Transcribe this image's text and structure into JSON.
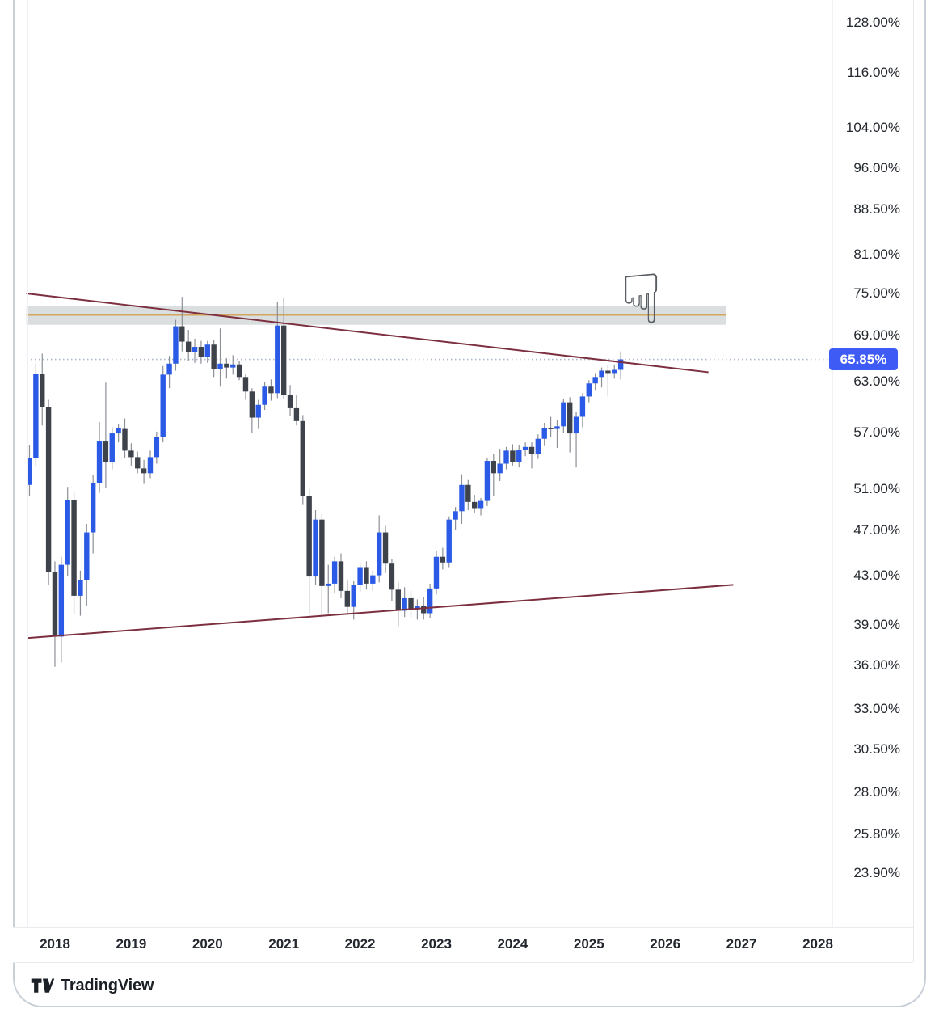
{
  "page": {
    "attribution_text": "TradingView"
  },
  "price_scale": {
    "current_label": "65.85%",
    "current_value": 65.85,
    "ticks": [
      {
        "label": "128.00%",
        "value": 128.0
      },
      {
        "label": "116.00%",
        "value": 116.0
      },
      {
        "label": "104.00%",
        "value": 104.0
      },
      {
        "label": "96.00%",
        "value": 96.0
      },
      {
        "label": "88.50%",
        "value": 88.5
      },
      {
        "label": "81.00%",
        "value": 81.0
      },
      {
        "label": "75.00%",
        "value": 75.0
      },
      {
        "label": "69.00%",
        "value": 69.0
      },
      {
        "label": "63.00%",
        "value": 63.0
      },
      {
        "label": "57.00%",
        "value": 57.0
      },
      {
        "label": "51.00%",
        "value": 51.0
      },
      {
        "label": "47.00%",
        "value": 47.0
      },
      {
        "label": "43.00%",
        "value": 43.0
      },
      {
        "label": "39.00%",
        "value": 39.0
      },
      {
        "label": "36.00%",
        "value": 36.0
      },
      {
        "label": "33.00%",
        "value": 33.0
      },
      {
        "label": "30.50%",
        "value": 30.5
      },
      {
        "label": "28.00%",
        "value": 28.0
      },
      {
        "label": "25.80%",
        "value": 25.8
      },
      {
        "label": "23.90%",
        "value": 23.9
      }
    ]
  },
  "time_scale": {
    "years": [
      "2018",
      "2019",
      "2020",
      "2021",
      "2022",
      "2023",
      "2024",
      "2025",
      "2026",
      "2027",
      "2028"
    ]
  },
  "chart_data": {
    "type": "candlestick",
    "title": "",
    "unit": "%",
    "interval": "monthly",
    "scale": "logarithmic",
    "grid": false,
    "legend": false,
    "ylim": [
      23.9,
      128.0
    ],
    "x_ticks": [
      "2018",
      "2019",
      "2020",
      "2021",
      "2022",
      "2023",
      "2024",
      "2025",
      "2026",
      "2027",
      "2028"
    ],
    "y_ticks": [
      128.0,
      116.0,
      104.0,
      96.0,
      88.5,
      81.0,
      75.0,
      69.0,
      63.0,
      57.0,
      51.0,
      47.0,
      43.0,
      39.0,
      36.0,
      33.0,
      30.5,
      28.0,
      25.8,
      23.9
    ],
    "last_price": 65.85,
    "colors": {
      "up": "#2b5be6",
      "down": "#3e424a",
      "wick": "#8c8f96",
      "zone_fill": "rgba(124,136,140,0.28)",
      "zone_line": "#d2a65f",
      "trendline": "#7c2f3f",
      "price_line": "#a9b7cb",
      "label_bg": "#3f5bf5"
    },
    "candles": [
      {
        "t": "2017-09",
        "o": 51.4,
        "h": 55.6,
        "l": 50.3,
        "c": 54.2
      },
      {
        "t": "2017-10",
        "o": 54.2,
        "h": 65.3,
        "l": 53.4,
        "c": 64.0
      },
      {
        "t": "2017-11",
        "o": 64.0,
        "h": 66.6,
        "l": 57.8,
        "c": 59.9
      },
      {
        "t": "2017-12",
        "o": 59.9,
        "h": 60.8,
        "l": 42.2,
        "c": 43.3
      },
      {
        "t": "2018-01",
        "o": 43.3,
        "h": 44.2,
        "l": 35.9,
        "c": 38.1
      },
      {
        "t": "2018-02",
        "o": 38.1,
        "h": 44.6,
        "l": 36.2,
        "c": 43.9
      },
      {
        "t": "2018-03",
        "o": 43.9,
        "h": 51.2,
        "l": 42.9,
        "c": 49.9
      },
      {
        "t": "2018-04",
        "o": 49.9,
        "h": 50.6,
        "l": 39.8,
        "c": 41.3
      },
      {
        "t": "2018-05",
        "o": 41.3,
        "h": 43.4,
        "l": 39.7,
        "c": 42.6
      },
      {
        "t": "2018-06",
        "o": 42.6,
        "h": 47.6,
        "l": 40.5,
        "c": 46.8
      },
      {
        "t": "2018-07",
        "o": 46.8,
        "h": 52.4,
        "l": 44.9,
        "c": 51.6
      },
      {
        "t": "2018-08",
        "o": 51.6,
        "h": 58.2,
        "l": 50.6,
        "c": 56.0
      },
      {
        "t": "2018-09",
        "o": 56.0,
        "h": 62.9,
        "l": 51.1,
        "c": 53.8
      },
      {
        "t": "2018-10",
        "o": 53.8,
        "h": 57.6,
        "l": 53.0,
        "c": 56.9
      },
      {
        "t": "2018-11",
        "o": 56.9,
        "h": 58.0,
        "l": 55.9,
        "c": 57.5
      },
      {
        "t": "2018-12",
        "o": 57.4,
        "h": 58.6,
        "l": 54.2,
        "c": 55.0
      },
      {
        "t": "2019-01",
        "o": 55.0,
        "h": 55.8,
        "l": 53.4,
        "c": 54.3
      },
      {
        "t": "2019-02",
        "o": 54.3,
        "h": 54.9,
        "l": 52.6,
        "c": 53.1
      },
      {
        "t": "2019-03",
        "o": 53.1,
        "h": 54.0,
        "l": 51.5,
        "c": 52.6
      },
      {
        "t": "2019-04",
        "o": 52.6,
        "h": 55.0,
        "l": 52.1,
        "c": 54.3
      },
      {
        "t": "2019-05",
        "o": 54.3,
        "h": 57.1,
        "l": 53.6,
        "c": 56.5
      },
      {
        "t": "2019-06",
        "o": 56.5,
        "h": 65.0,
        "l": 55.9,
        "c": 63.9
      },
      {
        "t": "2019-07",
        "o": 63.9,
        "h": 66.3,
        "l": 62.2,
        "c": 65.3
      },
      {
        "t": "2019-08",
        "o": 65.3,
        "h": 71.2,
        "l": 64.4,
        "c": 70.3
      },
      {
        "t": "2019-09",
        "o": 70.3,
        "h": 74.5,
        "l": 66.9,
        "c": 68.2
      },
      {
        "t": "2019-10",
        "o": 68.2,
        "h": 69.8,
        "l": 65.6,
        "c": 66.8
      },
      {
        "t": "2019-11",
        "o": 66.8,
        "h": 68.6,
        "l": 65.4,
        "c": 67.5
      },
      {
        "t": "2019-12",
        "o": 67.5,
        "h": 68.3,
        "l": 65.3,
        "c": 66.2
      },
      {
        "t": "2020-01",
        "o": 66.2,
        "h": 68.3,
        "l": 65.4,
        "c": 67.8
      },
      {
        "t": "2020-02",
        "o": 67.8,
        "h": 68.4,
        "l": 63.6,
        "c": 64.6
      },
      {
        "t": "2020-03",
        "o": 64.6,
        "h": 70.0,
        "l": 62.4,
        "c": 65.3
      },
      {
        "t": "2020-04",
        "o": 65.3,
        "h": 66.0,
        "l": 63.4,
        "c": 64.8
      },
      {
        "t": "2020-05",
        "o": 64.8,
        "h": 66.4,
        "l": 63.9,
        "c": 65.2
      },
      {
        "t": "2020-06",
        "o": 65.2,
        "h": 65.7,
        "l": 63.2,
        "c": 63.6
      },
      {
        "t": "2020-07",
        "o": 63.6,
        "h": 64.0,
        "l": 60.8,
        "c": 61.8
      },
      {
        "t": "2020-08",
        "o": 61.8,
        "h": 62.2,
        "l": 56.9,
        "c": 58.7
      },
      {
        "t": "2020-09",
        "o": 58.7,
        "h": 60.8,
        "l": 57.4,
        "c": 60.2
      },
      {
        "t": "2020-10",
        "o": 60.2,
        "h": 63.0,
        "l": 59.6,
        "c": 62.4
      },
      {
        "t": "2020-11",
        "o": 62.4,
        "h": 63.3,
        "l": 60.7,
        "c": 61.6
      },
      {
        "t": "2020-12",
        "o": 61.6,
        "h": 73.7,
        "l": 61.0,
        "c": 70.4
      },
      {
        "t": "2021-01",
        "o": 70.4,
        "h": 74.3,
        "l": 60.9,
        "c": 61.4
      },
      {
        "t": "2021-02",
        "o": 61.4,
        "h": 62.6,
        "l": 58.9,
        "c": 59.8
      },
      {
        "t": "2021-03",
        "o": 59.8,
        "h": 61.4,
        "l": 57.8,
        "c": 58.3
      },
      {
        "t": "2021-04",
        "o": 58.3,
        "h": 59.0,
        "l": 49.4,
        "c": 50.3
      },
      {
        "t": "2021-05",
        "o": 50.3,
        "h": 51.0,
        "l": 39.9,
        "c": 42.9
      },
      {
        "t": "2021-06",
        "o": 42.9,
        "h": 48.9,
        "l": 42.2,
        "c": 48.0
      },
      {
        "t": "2021-07",
        "o": 48.0,
        "h": 48.5,
        "l": 39.5,
        "c": 42.1
      },
      {
        "t": "2021-08",
        "o": 42.1,
        "h": 43.9,
        "l": 39.9,
        "c": 42.3
      },
      {
        "t": "2021-09",
        "o": 42.3,
        "h": 44.6,
        "l": 41.5,
        "c": 44.2
      },
      {
        "t": "2021-10",
        "o": 44.2,
        "h": 44.9,
        "l": 41.1,
        "c": 41.7
      },
      {
        "t": "2021-11",
        "o": 41.7,
        "h": 42.6,
        "l": 39.8,
        "c": 40.4
      },
      {
        "t": "2021-12",
        "o": 40.4,
        "h": 42.5,
        "l": 39.4,
        "c": 42.2
      },
      {
        "t": "2022-01",
        "o": 42.2,
        "h": 44.0,
        "l": 41.6,
        "c": 43.7
      },
      {
        "t": "2022-02",
        "o": 43.7,
        "h": 44.2,
        "l": 41.8,
        "c": 42.3
      },
      {
        "t": "2022-03",
        "o": 42.3,
        "h": 43.4,
        "l": 41.7,
        "c": 43.0
      },
      {
        "t": "2022-04",
        "o": 43.0,
        "h": 48.4,
        "l": 42.4,
        "c": 46.8
      },
      {
        "t": "2022-05",
        "o": 46.8,
        "h": 47.4,
        "l": 43.2,
        "c": 44.0
      },
      {
        "t": "2022-06",
        "o": 44.0,
        "h": 44.4,
        "l": 40.9,
        "c": 41.8
      },
      {
        "t": "2022-07",
        "o": 41.8,
        "h": 42.4,
        "l": 38.9,
        "c": 40.1
      },
      {
        "t": "2022-08",
        "o": 40.1,
        "h": 42.0,
        "l": 39.6,
        "c": 41.1
      },
      {
        "t": "2022-09",
        "o": 41.1,
        "h": 41.7,
        "l": 39.6,
        "c": 40.2
      },
      {
        "t": "2022-10",
        "o": 40.2,
        "h": 41.0,
        "l": 39.4,
        "c": 40.5
      },
      {
        "t": "2022-11",
        "o": 40.5,
        "h": 41.2,
        "l": 39.4,
        "c": 39.9
      },
      {
        "t": "2022-12",
        "o": 39.9,
        "h": 42.3,
        "l": 39.5,
        "c": 41.9
      },
      {
        "t": "2023-01",
        "o": 41.9,
        "h": 45.1,
        "l": 41.4,
        "c": 44.6
      },
      {
        "t": "2023-02",
        "o": 44.6,
        "h": 45.4,
        "l": 43.5,
        "c": 44.1
      },
      {
        "t": "2023-03",
        "o": 44.1,
        "h": 48.3,
        "l": 43.7,
        "c": 48.0
      },
      {
        "t": "2023-04",
        "o": 48.0,
        "h": 49.2,
        "l": 47.0,
        "c": 48.8
      },
      {
        "t": "2023-05",
        "o": 48.8,
        "h": 52.5,
        "l": 47.6,
        "c": 51.4
      },
      {
        "t": "2023-06",
        "o": 51.4,
        "h": 51.9,
        "l": 48.9,
        "c": 49.7
      },
      {
        "t": "2023-07",
        "o": 49.7,
        "h": 50.4,
        "l": 48.6,
        "c": 49.1
      },
      {
        "t": "2023-08",
        "o": 49.1,
        "h": 50.1,
        "l": 48.4,
        "c": 49.8
      },
      {
        "t": "2023-09",
        "o": 49.8,
        "h": 54.2,
        "l": 49.3,
        "c": 53.9
      },
      {
        "t": "2023-10",
        "o": 53.9,
        "h": 54.6,
        "l": 50.3,
        "c": 52.6
      },
      {
        "t": "2023-11",
        "o": 52.6,
        "h": 55.2,
        "l": 51.8,
        "c": 53.6
      },
      {
        "t": "2023-12",
        "o": 53.6,
        "h": 55.4,
        "l": 53.0,
        "c": 55.0
      },
      {
        "t": "2024-01",
        "o": 55.0,
        "h": 55.7,
        "l": 53.4,
        "c": 53.8
      },
      {
        "t": "2024-02",
        "o": 53.8,
        "h": 55.6,
        "l": 53.2,
        "c": 55.1
      },
      {
        "t": "2024-03",
        "o": 55.1,
        "h": 55.9,
        "l": 54.4,
        "c": 55.4
      },
      {
        "t": "2024-04",
        "o": 55.4,
        "h": 55.9,
        "l": 53.1,
        "c": 54.6
      },
      {
        "t": "2024-05",
        "o": 54.6,
        "h": 56.8,
        "l": 54.1,
        "c": 56.3
      },
      {
        "t": "2024-06",
        "o": 56.3,
        "h": 58.1,
        "l": 55.5,
        "c": 57.5
      },
      {
        "t": "2024-07",
        "o": 57.5,
        "h": 58.8,
        "l": 56.5,
        "c": 57.4
      },
      {
        "t": "2024-08",
        "o": 57.4,
        "h": 58.4,
        "l": 55.3,
        "c": 57.7
      },
      {
        "t": "2024-09",
        "o": 57.7,
        "h": 60.9,
        "l": 56.9,
        "c": 60.5
      },
      {
        "t": "2024-10",
        "o": 60.5,
        "h": 61.1,
        "l": 54.8,
        "c": 56.9
      },
      {
        "t": "2024-11",
        "o": 56.9,
        "h": 59.4,
        "l": 53.2,
        "c": 58.8
      },
      {
        "t": "2024-12",
        "o": 58.8,
        "h": 61.6,
        "l": 57.6,
        "c": 61.2
      },
      {
        "t": "2025-01",
        "o": 61.2,
        "h": 63.2,
        "l": 60.5,
        "c": 62.8
      },
      {
        "t": "2025-02",
        "o": 62.8,
        "h": 64.1,
        "l": 61.9,
        "c": 63.6
      },
      {
        "t": "2025-03",
        "o": 63.6,
        "h": 64.8,
        "l": 62.3,
        "c": 64.4
      },
      {
        "t": "2025-04",
        "o": 64.4,
        "h": 65.1,
        "l": 61.2,
        "c": 64.1
      },
      {
        "t": "2025-05",
        "o": 64.1,
        "h": 65.2,
        "l": 63.4,
        "c": 64.5
      },
      {
        "t": "2025-06",
        "o": 64.5,
        "h": 66.9,
        "l": 63.3,
        "c": 65.85
      }
    ],
    "overlays": {
      "resistance_zone": {
        "price_top": 73.2,
        "price_bottom": 70.5,
        "line_price": 71.9,
        "from_index": -0.5,
        "to_index": 109.6
      },
      "descending_trendline": {
        "from_index": -0.5,
        "price1": 75.0,
        "to_index": 106.8,
        "price2": 64.2
      },
      "ascending_trendline": {
        "from_index": -0.2,
        "price1": 38.0,
        "to_index": 110.7,
        "price2": 42.2
      },
      "current_price_line": {
        "price": 65.85,
        "style": "dotted"
      }
    },
    "annotations": {
      "pointer_hand": {
        "glyph": "☟",
        "meaning": "hand pointing down at resistance zone",
        "color": "#575c62"
      }
    }
  }
}
